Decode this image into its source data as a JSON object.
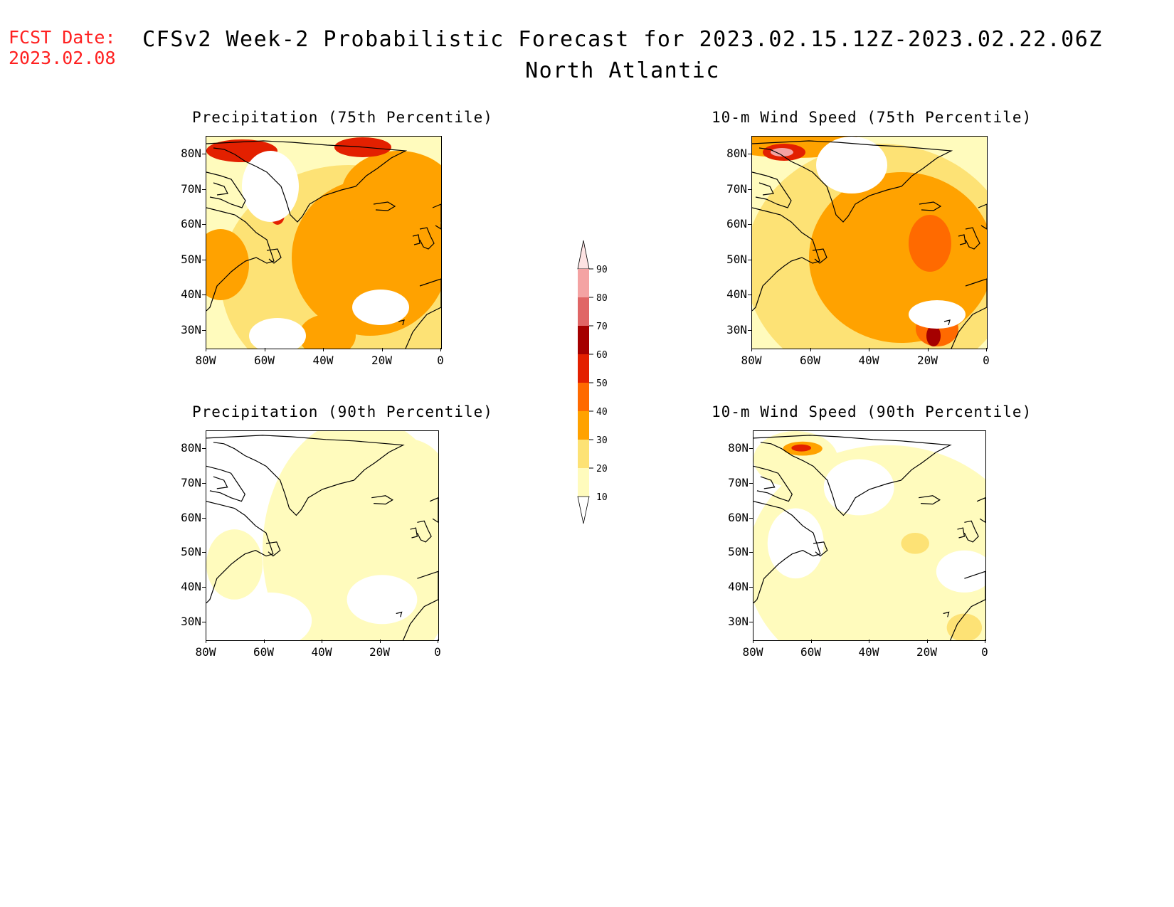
{
  "header": {
    "fcst_label": "FCST Date:",
    "fcst_date": "2023.02.08",
    "title": "CFSv2 Week-2 Probabilistic Forecast for 2023.02.15.12Z-2023.02.22.06Z",
    "region": "North Atlantic"
  },
  "panels": [
    {
      "title": "Precipitation (75th Percentile)",
      "intensity": "high"
    },
    {
      "title": "10-m Wind Speed (75th Percentile)",
      "intensity": "high"
    },
    {
      "title": "Precipitation (90th Percentile)",
      "intensity": "low"
    },
    {
      "title": "10-m Wind Speed (90th Percentile)",
      "intensity": "low"
    }
  ],
  "axes": {
    "lat_labels": [
      "80N",
      "70N",
      "60N",
      "50N",
      "40N",
      "30N"
    ],
    "lon_labels": [
      "80W",
      "60W",
      "40W",
      "20W",
      "0"
    ]
  },
  "colorbar": {
    "levels": [
      "90",
      "80",
      "70",
      "60",
      "50",
      "40",
      "30",
      "20",
      "10"
    ],
    "colors": [
      "#fde3e3",
      "#f4a3a3",
      "#e06666",
      "#a50000",
      "#e32000",
      "#ff6a00",
      "#ffa200",
      "#fde275",
      "#fffbbd"
    ]
  }
}
